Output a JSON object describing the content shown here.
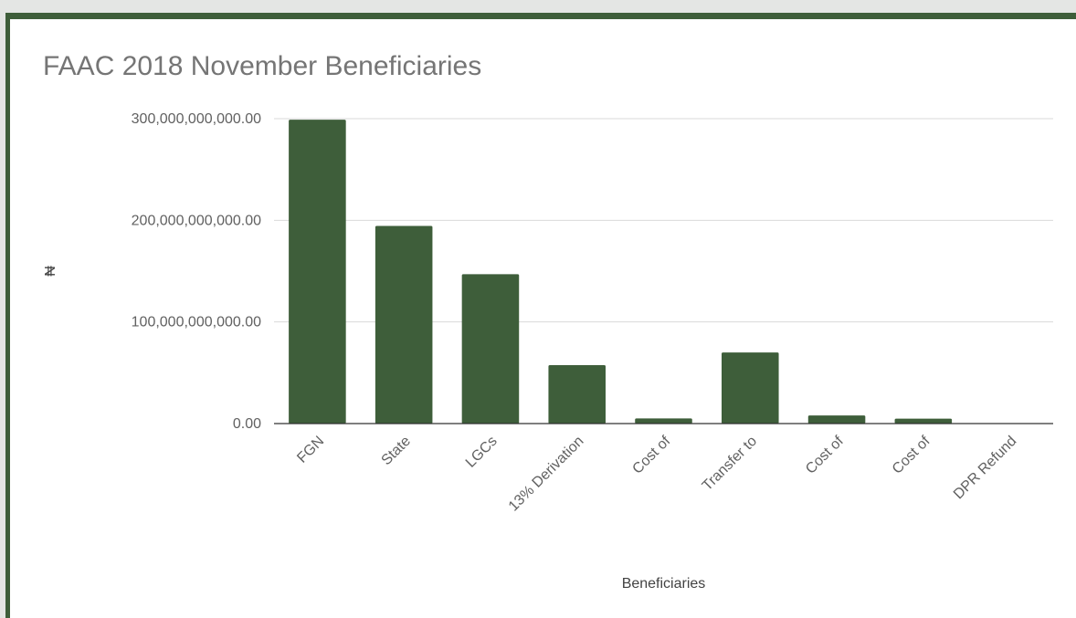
{
  "chart_data": {
    "type": "bar",
    "title": "FAAC 2018 November Beneficiaries",
    "xlabel": "Beneficiaries",
    "ylabel": "₦",
    "categories": [
      "FGN",
      "State",
      "LGCs",
      "13% Derivation",
      "Cost of",
      "Transfer to",
      "Cost of",
      "Cost of",
      "DPR Refund"
    ],
    "values": [
      299000000000,
      194500000000,
      147000000000,
      57500000000,
      5000000000,
      70000000000,
      8000000000,
      4800000000,
      0
    ],
    "ylim": [
      0,
      300000000000
    ],
    "yticks": [
      0,
      100000000000,
      200000000000,
      300000000000
    ],
    "ytick_labels": [
      "0.00",
      "100,000,000,000.00",
      "200,000,000,000.00",
      "300,000,000,000.00"
    ],
    "grid": true,
    "legend": "none",
    "bar_color": "#3e5e3a",
    "grid_color": "#d9d9d9",
    "baseline_color": "#333333"
  }
}
